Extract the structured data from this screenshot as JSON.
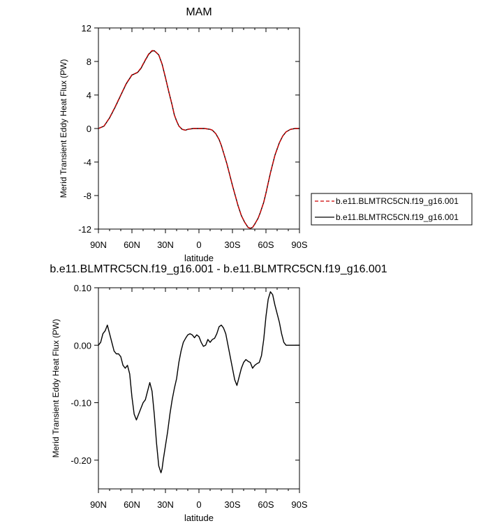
{
  "chart_data": [
    {
      "type": "line",
      "title": "MAM",
      "xlabel": "latitude",
      "ylabel": "Merid Transient Eddy Heat Flux (PW)",
      "xlim": [
        90,
        -90
      ],
      "ylim": [
        -12,
        12
      ],
      "x_ticks": [
        {
          "value": 90,
          "label": "90N"
        },
        {
          "value": 60,
          "label": "60N"
        },
        {
          "value": 30,
          "label": "30N"
        },
        {
          "value": 0,
          "label": "0"
        },
        {
          "value": -30,
          "label": "30S"
        },
        {
          "value": -60,
          "label": "60S"
        },
        {
          "value": -90,
          "label": "90S"
        }
      ],
      "y_ticks": [
        {
          "value": 12,
          "label": "12"
        },
        {
          "value": 8,
          "label": "8"
        },
        {
          "value": 4,
          "label": "4"
        },
        {
          "value": 0,
          "label": "0"
        },
        {
          "value": -4,
          "label": "-4"
        },
        {
          "value": -8,
          "label": "-8"
        },
        {
          "value": -12,
          "label": "-12"
        }
      ],
      "legend_position": "right",
      "series": [
        {
          "name": "b.e11.BLMTRC5CN.f19_g16.001",
          "color": "#cc0000",
          "style": "dashed",
          "x": [
            90,
            85,
            80,
            75,
            70,
            65,
            60,
            55,
            52,
            48,
            45,
            42,
            40,
            36,
            33,
            30,
            27,
            24,
            22,
            20,
            18,
            15,
            12,
            10,
            5,
            0,
            -5,
            -10,
            -12,
            -15,
            -18,
            -20,
            -25,
            -30,
            -35,
            -38,
            -41,
            -44,
            -46,
            -48,
            -50,
            -53,
            -55,
            -58,
            -60,
            -64,
            -68,
            -72,
            -75,
            -78,
            -82,
            -86,
            -90
          ],
          "y": [
            0.0,
            0.3,
            1.3,
            2.6,
            4.0,
            5.4,
            6.4,
            6.7,
            7.2,
            8.2,
            8.9,
            9.3,
            9.3,
            8.8,
            7.7,
            6.1,
            4.4,
            2.8,
            1.6,
            0.9,
            0.3,
            -0.1,
            -0.2,
            -0.1,
            0.0,
            0.0,
            0.0,
            -0.1,
            -0.2,
            -0.6,
            -1.3,
            -2.0,
            -4.2,
            -6.8,
            -9.2,
            -10.4,
            -11.2,
            -11.8,
            -11.9,
            -11.8,
            -11.4,
            -10.7,
            -10.0,
            -8.8,
            -7.7,
            -5.3,
            -3.2,
            -1.7,
            -0.9,
            -0.4,
            -0.1,
            0.0,
            0.0
          ]
        },
        {
          "name": "b.e11.BLMTRC5CN.f19_g16.001",
          "color": "#000000",
          "style": "solid",
          "x": [
            90,
            85,
            80,
            75,
            70,
            65,
            60,
            55,
            52,
            48,
            45,
            42,
            40,
            36,
            33,
            30,
            27,
            24,
            22,
            20,
            18,
            15,
            12,
            10,
            5,
            0,
            -5,
            -10,
            -12,
            -15,
            -18,
            -20,
            -25,
            -30,
            -35,
            -38,
            -41,
            -44,
            -46,
            -48,
            -50,
            -53,
            -55,
            -58,
            -60,
            -64,
            -68,
            -72,
            -75,
            -78,
            -82,
            -86,
            -90
          ],
          "y": [
            0.0,
            0.28,
            1.27,
            2.56,
            3.96,
            5.36,
            6.38,
            6.68,
            7.15,
            8.15,
            8.85,
            9.25,
            9.28,
            8.78,
            7.68,
            6.07,
            4.38,
            2.79,
            1.6,
            0.9,
            0.3,
            -0.1,
            -0.2,
            -0.1,
            0.0,
            0.0,
            0.0,
            -0.1,
            -0.2,
            -0.6,
            -1.3,
            -2.0,
            -4.2,
            -6.8,
            -9.2,
            -10.4,
            -11.2,
            -11.8,
            -11.9,
            -11.8,
            -11.4,
            -10.7,
            -10.0,
            -8.8,
            -7.7,
            -5.3,
            -3.2,
            -1.7,
            -0.9,
            -0.4,
            -0.1,
            0.0,
            0.0
          ]
        }
      ]
    },
    {
      "type": "line",
      "title": "b.e11.BLMTRC5CN.f19_g16.001 - b.e11.BLMTRC5CN.f19_g16.001",
      "xlabel": "latitude",
      "ylabel": "Merid Transient Eddy Heat Flux (PW)",
      "xlim": [
        90,
        -90
      ],
      "ylim": [
        -0.25,
        0.1
      ],
      "x_ticks": [
        {
          "value": 90,
          "label": "90N"
        },
        {
          "value": 60,
          "label": "60N"
        },
        {
          "value": 30,
          "label": "30N"
        },
        {
          "value": 0,
          "label": "0"
        },
        {
          "value": -30,
          "label": "30S"
        },
        {
          "value": -60,
          "label": "60S"
        },
        {
          "value": -90,
          "label": "90S"
        }
      ],
      "y_ticks": [
        {
          "value": 0.1,
          "label": "0.10"
        },
        {
          "value": 0.0,
          "label": "0.00"
        },
        {
          "value": -0.1,
          "label": "-0.10"
        },
        {
          "value": -0.2,
          "label": "-0.20"
        }
      ],
      "series": [
        {
          "color": "#000000",
          "style": "solid",
          "x": [
            90,
            88,
            86,
            84,
            82,
            80,
            78,
            76,
            74,
            72,
            70,
            68,
            66,
            64,
            62,
            60,
            58,
            56,
            55,
            52,
            50,
            48,
            46,
            44,
            42,
            40,
            38,
            36,
            34,
            33,
            32,
            30,
            28,
            26,
            24,
            22,
            20,
            18,
            16,
            14,
            12,
            10,
            8,
            6,
            4,
            2,
            0,
            -2,
            -4,
            -6,
            -8,
            -10,
            -12,
            -14,
            -16,
            -18,
            -20,
            -22,
            -24,
            -26,
            -28,
            -30,
            -32,
            -34,
            -36,
            -38,
            -40,
            -42,
            -44,
            -46,
            -48,
            -50,
            -52,
            -54,
            -56,
            -58,
            -60,
            -62,
            -64,
            -66,
            -68,
            -70,
            -72,
            -74,
            -76,
            -78,
            -80,
            -82,
            -84,
            -86,
            -88,
            -90
          ],
          "y": [
            0.0,
            0.005,
            0.02,
            0.025,
            0.035,
            0.02,
            0.005,
            -0.01,
            -0.015,
            -0.015,
            -0.02,
            -0.035,
            -0.04,
            -0.035,
            -0.05,
            -0.09,
            -0.12,
            -0.13,
            -0.125,
            -0.11,
            -0.1,
            -0.095,
            -0.08,
            -0.065,
            -0.08,
            -0.12,
            -0.17,
            -0.21,
            -0.222,
            -0.215,
            -0.2,
            -0.175,
            -0.15,
            -0.12,
            -0.095,
            -0.075,
            -0.058,
            -0.03,
            -0.01,
            0.005,
            0.012,
            0.018,
            0.02,
            0.018,
            0.013,
            0.018,
            0.015,
            0.005,
            -0.002,
            0.0,
            0.01,
            0.005,
            0.01,
            0.012,
            0.02,
            0.032,
            0.035,
            0.03,
            0.02,
            0.0,
            -0.02,
            -0.04,
            -0.06,
            -0.07,
            -0.055,
            -0.04,
            -0.03,
            -0.025,
            -0.028,
            -0.03,
            -0.04,
            -0.035,
            -0.032,
            -0.03,
            -0.018,
            0.01,
            0.05,
            0.08,
            0.093,
            0.088,
            0.07,
            0.055,
            0.04,
            0.02,
            0.005,
            0.0,
            0.0,
            0.0,
            0.0,
            0.0,
            0.0,
            0.0
          ]
        }
      ]
    }
  ]
}
